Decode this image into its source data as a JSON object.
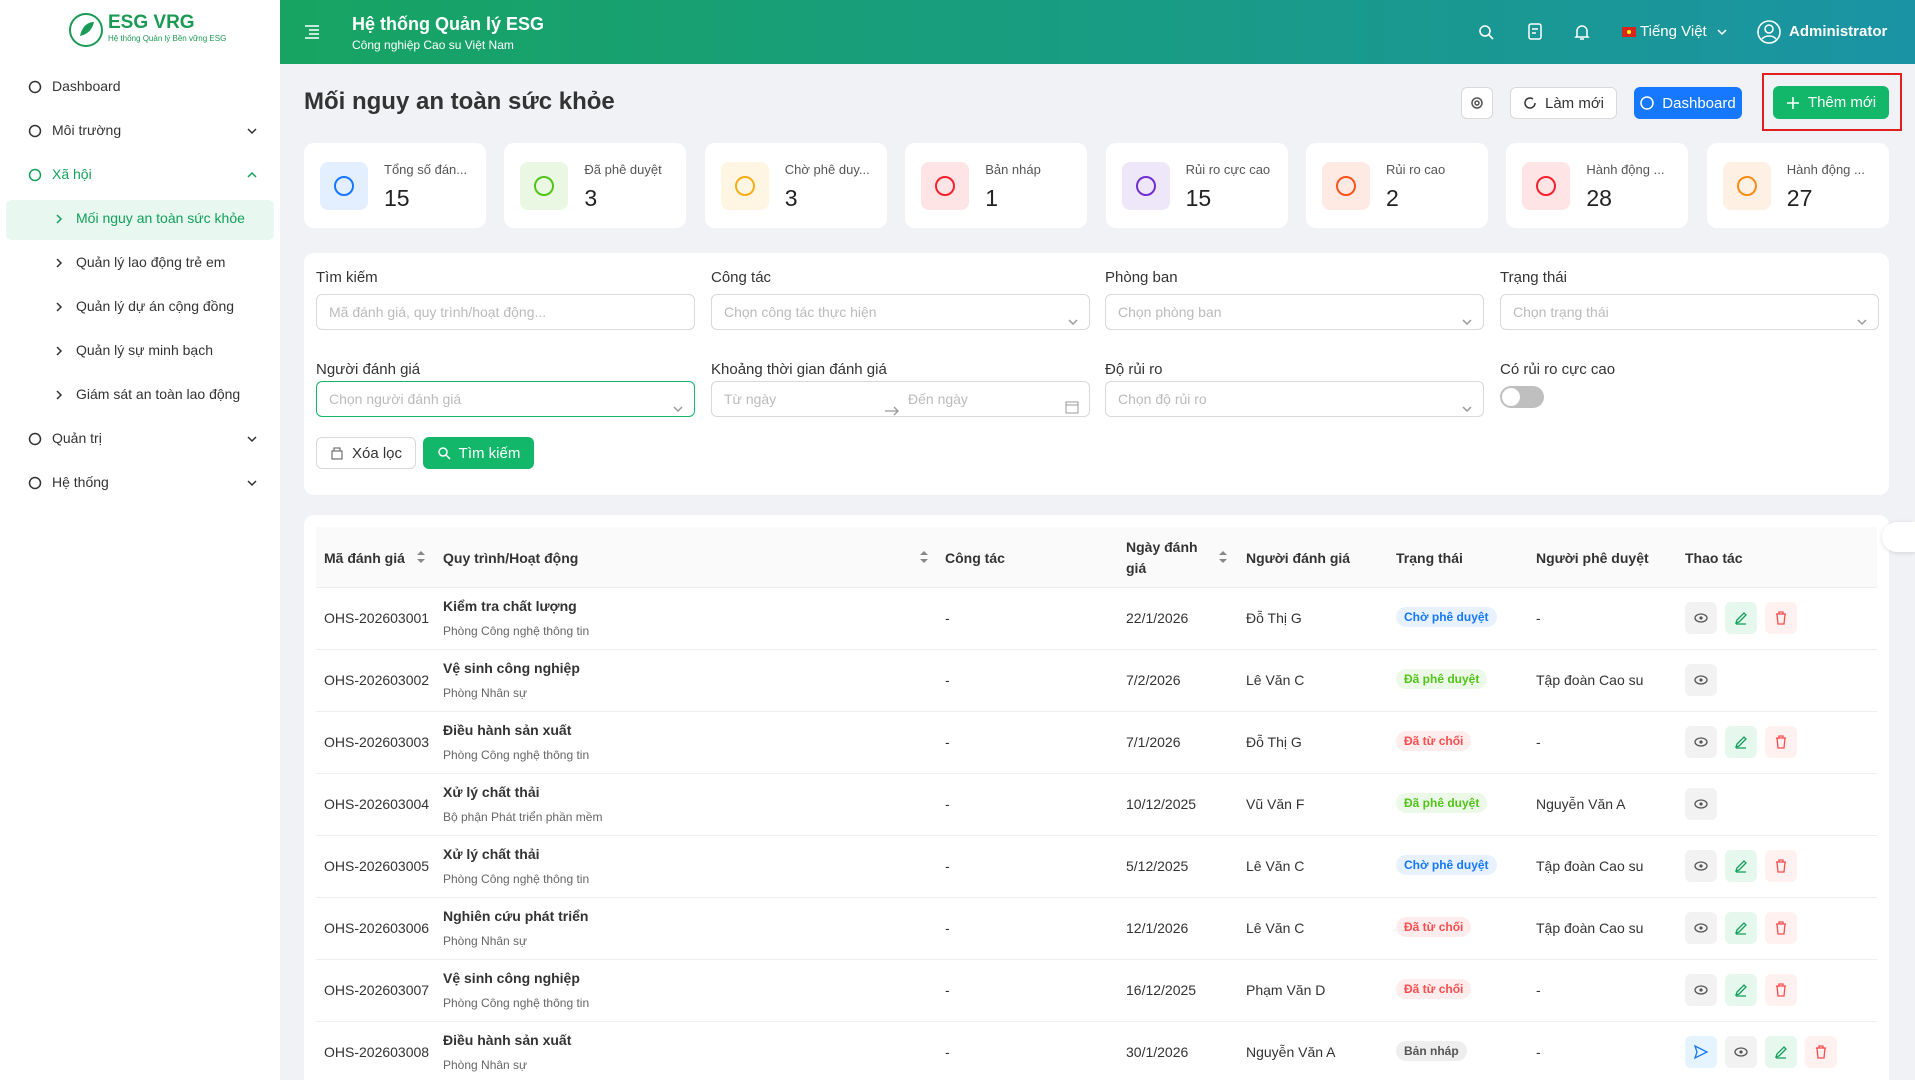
{
  "sidebar": {
    "brand": "ESG VRG",
    "brand_sub": "Hệ thống Quản lý Bền vững ESG",
    "menu": [
      {
        "label": "Dashboard"
      },
      {
        "label": "Môi trường"
      },
      {
        "label": "Xã hội",
        "children": [
          "Mối nguy an toàn sức khỏe",
          "Quản lý lao động trẻ em",
          "Quản lý dự án cộng đồng",
          "Quản lý sự minh bạch",
          "Giám sát an toàn lao động"
        ]
      },
      {
        "label": "Quản trị"
      },
      {
        "label": "Hệ thống"
      }
    ]
  },
  "header": {
    "title": "Hệ thống Quản lý ESG",
    "subtitle": "Công nghiệp Cao su Việt Nam",
    "language": "Tiếng Việt",
    "user": "Administrator"
  },
  "page": {
    "title": "Mối nguy an toàn sức khỏe",
    "refresh": "Làm mới",
    "dashboard": "Dashboard",
    "add": "Thêm mới"
  },
  "stats": [
    {
      "label": "Tổng số đán...",
      "value": 15,
      "color": "#1677ff"
    },
    {
      "label": "Đã phê duyệt",
      "value": 3,
      "color": "#52c41a"
    },
    {
      "label": "Chờ phê duy...",
      "value": 3,
      "color": "#faad14"
    },
    {
      "label": "Bản nháp",
      "value": 1,
      "color": "#f5222d"
    },
    {
      "label": "Rủi ro cực cao",
      "value": 15,
      "color": "#722ed1"
    },
    {
      "label": "Rủi ro cao",
      "value": 2,
      "color": "#fa541c"
    },
    {
      "label": "Hành động ...",
      "value": 28,
      "color": "#f5222d"
    },
    {
      "label": "Hành động ...",
      "value": 27,
      "color": "#fa8c16"
    }
  ],
  "filters": {
    "search": {
      "label": "Tìm kiếm",
      "placeholder": "Mã đánh giá, quy trình/hoạt động..."
    },
    "task": {
      "label": "Công tác",
      "placeholder": "Chọn công tác thực hiện"
    },
    "department": {
      "label": "Phòng ban",
      "placeholder": "Chọn phòng ban"
    },
    "status": {
      "label": "Trạng thái",
      "placeholder": "Chọn trạng thái"
    },
    "assessor": {
      "label": "Người đánh giá",
      "placeholder": "Chọn người đánh giá"
    },
    "period": {
      "label": "Khoảng thời gian đánh giá",
      "from": "Từ ngày",
      "to": "Đến ngày"
    },
    "risk": {
      "label": "Độ rủi ro",
      "placeholder": "Chọn độ rủi ro"
    },
    "critical": {
      "label": "Có rủi ro cực cao"
    },
    "clear": "Xóa lọc",
    "submit": "Tìm kiếm"
  },
  "table": {
    "columns": [
      {
        "label": "Mã đánh giá",
        "sortable": true
      },
      {
        "label": "Quy trình/Hoạt động",
        "sortable": true
      },
      {
        "label": "Công tác",
        "sortable": false
      },
      {
        "label": "Ngày đánh giá",
        "sortable": true
      },
      {
        "label": "Người đánh giá",
        "sortable": false
      },
      {
        "label": "Trạng thái",
        "sortable": false
      },
      {
        "label": "Người phê duyệt",
        "sortable": false
      },
      {
        "label": "Thao tác",
        "sortable": false
      }
    ],
    "rows": [
      {
        "code": "OHS-202603001",
        "activity": "Kiểm tra chất lượng",
        "department": "Phòng Công nghệ thông tin",
        "task": "-",
        "date": "22/1/2026",
        "assessor": "Đỗ Thị G",
        "status": "Chờ phê duyệt",
        "status_color": "#1677ff",
        "approver": "-"
      },
      {
        "code": "OHS-202603002",
        "activity": "Vệ sinh công nghiệp",
        "department": "Phòng Nhân sự",
        "task": "-",
        "date": "7/2/2026",
        "assessor": "Lê Văn C",
        "status": "Đã phê duyệt",
        "status_color": "#52c41a",
        "approver": "Tập đoàn Cao su"
      },
      {
        "code": "OHS-202603003",
        "activity": "Điều hành sản xuất",
        "department": "Phòng Công nghệ thông tin",
        "task": "-",
        "date": "7/1/2026",
        "assessor": "Đỗ Thị G",
        "status": "Đã từ chối",
        "status_color": "#ff4d4f",
        "approver": "-"
      },
      {
        "code": "OHS-202603004",
        "activity": "Xử lý chất thải",
        "department": "Bộ phận Phát triển phần mềm",
        "task": "-",
        "date": "10/12/2025",
        "assessor": "Vũ Văn F",
        "status": "Đã phê duyệt",
        "status_color": "#52c41a",
        "approver": "Nguyễn Văn A"
      },
      {
        "code": "OHS-202603005",
        "activity": "Xử lý chất thải",
        "department": "Phòng Công nghệ thông tin",
        "task": "-",
        "date": "5/12/2025",
        "assessor": "Lê Văn C",
        "status": "Chờ phê duyệt",
        "status_color": "#1677ff",
        "approver": "Tập đoàn Cao su"
      },
      {
        "code": "OHS-202603006",
        "activity": "Nghiên cứu phát triển",
        "department": "Phòng Nhân sự",
        "task": "-",
        "date": "12/1/2026",
        "assessor": "Lê Văn C",
        "status": "Đã từ chối",
        "status_color": "#ff4d4f",
        "approver": "Tập đoàn Cao su"
      },
      {
        "code": "OHS-202603007",
        "activity": "Vệ sinh công nghiệp",
        "department": "Phòng Công nghệ thông tin",
        "task": "-",
        "date": "16/12/2025",
        "assessor": "Phạm Văn D",
        "status": "Đã từ chối",
        "status_color": "#ff4d4f",
        "approver": "-"
      },
      {
        "code": "OHS-202603008",
        "activity": "Điều hành sản xuất",
        "department": "Phòng Nhân sự",
        "task": "-",
        "date": "30/1/2026",
        "assessor": "Nguyễn Văn A",
        "status": "Bản nháp",
        "status_color": "#555555",
        "approver": "-"
      }
    ]
  }
}
